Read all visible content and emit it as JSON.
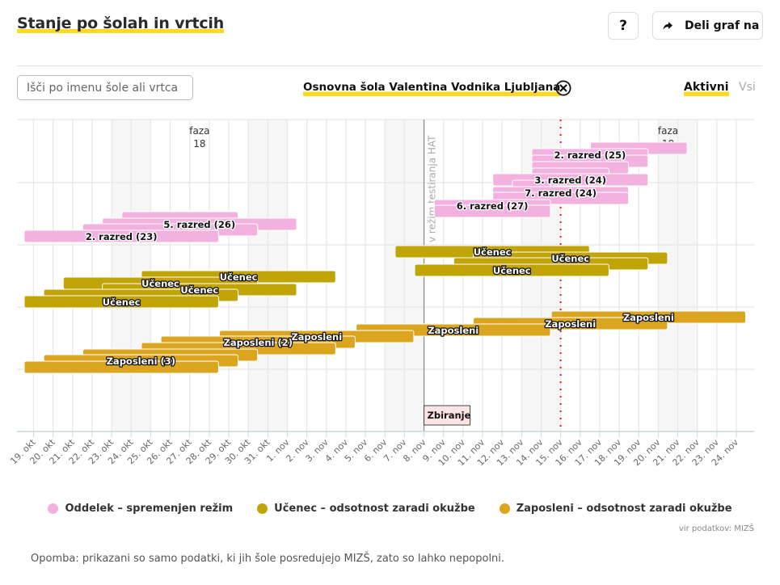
{
  "header": {
    "title": "Stanje po šolah in vrtcih",
    "help_label": "?",
    "share_label": "Deli graf na"
  },
  "filters": {
    "search_placeholder": "Išči po imenu šole ali vrtca",
    "selected_school": "Osnovna šola Valentina Vodnika Ljubljana",
    "status_active": "Aktivni",
    "status_all": "Vsi"
  },
  "legend": [
    {
      "label": "Oddelek – spremenjen režim",
      "color": "#f2b1de"
    },
    {
      "label": "Učenec – odsotnost zaradi okužbe",
      "color": "#c1a506"
    },
    {
      "label": "Zaposleni – odsotnost zaradi okužbe",
      "color": "#dca520"
    }
  ],
  "source": "vir podatkov: MIZŠ",
  "note": "Opomba: prikazani so samo podatki, ki jih šole posredujejo MIZŠ, zato so lahko nepopolni.",
  "chart_data": {
    "type": "gantt",
    "title": "",
    "x_range": [
      "2020-10-19",
      "2020-11-24"
    ],
    "x_tick_labels": [
      "19. okt",
      "20. okt",
      "21. okt",
      "22. okt",
      "23. okt",
      "24. okt",
      "25. okt",
      "26. okt",
      "27. okt",
      "28. okt",
      "29. okt",
      "30. okt",
      "31. okt",
      "1. nov",
      "2. nov",
      "3. nov",
      "4. nov",
      "5. nov",
      "6. nov",
      "7. nov",
      "8. nov",
      "9. nov",
      "10. nov",
      "11. nov",
      "12. nov",
      "13. nov",
      "14. nov",
      "15. nov",
      "16. nov",
      "17. nov",
      "18. nov",
      "19. nov",
      "20. nov",
      "21. nov",
      "22. nov",
      "23. nov",
      "24. nov"
    ],
    "weekends_shaded": true,
    "grid": true,
    "phase_annotations": [
      {
        "label": "faza",
        "value": "18",
        "date": "2020-10-28"
      },
      {
        "label": "faza",
        "value": "18",
        "date": "2020-11-21"
      }
    ],
    "event_lines": [
      {
        "date": "2020-11-08",
        "label": "v režim testiranja HAT",
        "flag": "Zbiranje",
        "style": "solid",
        "color": "#888888"
      },
      {
        "date": "2020-11-15",
        "label": "",
        "style": "dotted",
        "color": "#e8191b"
      }
    ],
    "series": [
      {
        "name": "Oddelek – spremenjen režim",
        "color": "#f2b1de",
        "bars": [
          {
            "start": "2020-10-24",
            "end": "2020-10-29",
            "label": ""
          },
          {
            "start": "2020-10-23",
            "end": "2020-11-01",
            "label": "5. razred (26)"
          },
          {
            "start": "2020-10-22",
            "end": "2020-10-30",
            "label": ""
          },
          {
            "start": "2020-10-19",
            "end": "2020-10-28",
            "label": "2. razred (23)"
          },
          {
            "start": "2020-11-17",
            "end": "2020-11-21",
            "label": ""
          },
          {
            "start": "2020-11-14",
            "end": "2020-11-19",
            "label": "2. razred (25)"
          },
          {
            "start": "2020-11-14",
            "end": "2020-11-19",
            "label": ""
          },
          {
            "start": "2020-11-14",
            "end": "2020-11-18",
            "label": ""
          },
          {
            "start": "2020-11-14",
            "end": "2020-11-17",
            "label": ""
          },
          {
            "start": "2020-11-12",
            "end": "2020-11-19",
            "label": "3. razred (24)"
          },
          {
            "start": "2020-11-13",
            "end": "2020-11-14",
            "label": ""
          },
          {
            "start": "2020-11-12",
            "end": "2020-11-18",
            "label": "7. razred (24)"
          },
          {
            "start": "2020-11-12",
            "end": "2020-11-18",
            "label": ""
          },
          {
            "start": "2020-11-09",
            "end": "2020-11-14",
            "label": "6. razred (27)"
          },
          {
            "start": "2020-11-09",
            "end": "2020-11-14",
            "label": ""
          }
        ]
      },
      {
        "name": "Učenec – odsotnost zaradi okužbe",
        "color": "#c1a506",
        "bars": [
          {
            "start": "2020-10-25",
            "end": "2020-11-03",
            "label": "Učenec"
          },
          {
            "start": "2020-10-21",
            "end": "2020-10-30",
            "label": "Učenec"
          },
          {
            "start": "2020-10-23",
            "end": "2020-11-01",
            "label": "Učenec"
          },
          {
            "start": "2020-10-20",
            "end": "2020-10-29",
            "label": ""
          },
          {
            "start": "2020-10-19",
            "end": "2020-10-28",
            "label": "Učenec"
          },
          {
            "start": "2020-11-07",
            "end": "2020-11-16",
            "label": "Učenec"
          },
          {
            "start": "2020-11-11",
            "end": "2020-11-20",
            "label": "Učenec"
          },
          {
            "start": "2020-11-10",
            "end": "2020-11-19",
            "label": ""
          },
          {
            "start": "2020-11-08",
            "end": "2020-11-17",
            "label": "Učenec"
          }
        ]
      },
      {
        "name": "Zaposleni – odsotnost zaradi okužbe",
        "color": "#dca520",
        "bars": [
          {
            "start": "2020-11-15",
            "end": "2020-11-24",
            "label": "Zaposleni"
          },
          {
            "start": "2020-11-11",
            "end": "2020-11-20",
            "label": "Zaposleni"
          },
          {
            "start": "2020-11-05",
            "end": "2020-11-14",
            "label": "Zaposleni"
          },
          {
            "start": "2020-10-29",
            "end": "2020-11-07",
            "label": "Zaposleni"
          },
          {
            "start": "2020-10-26",
            "end": "2020-11-04",
            "label": "Zaposleni (2)"
          },
          {
            "start": "2020-10-25",
            "end": "2020-11-03",
            "label": ""
          },
          {
            "start": "2020-10-22",
            "end": "2020-10-30",
            "label": ""
          },
          {
            "start": "2020-10-20",
            "end": "2020-10-29",
            "label": "Zaposleni (3)"
          },
          {
            "start": "2020-10-19",
            "end": "2020-10-28",
            "label": ""
          }
        ]
      }
    ]
  }
}
